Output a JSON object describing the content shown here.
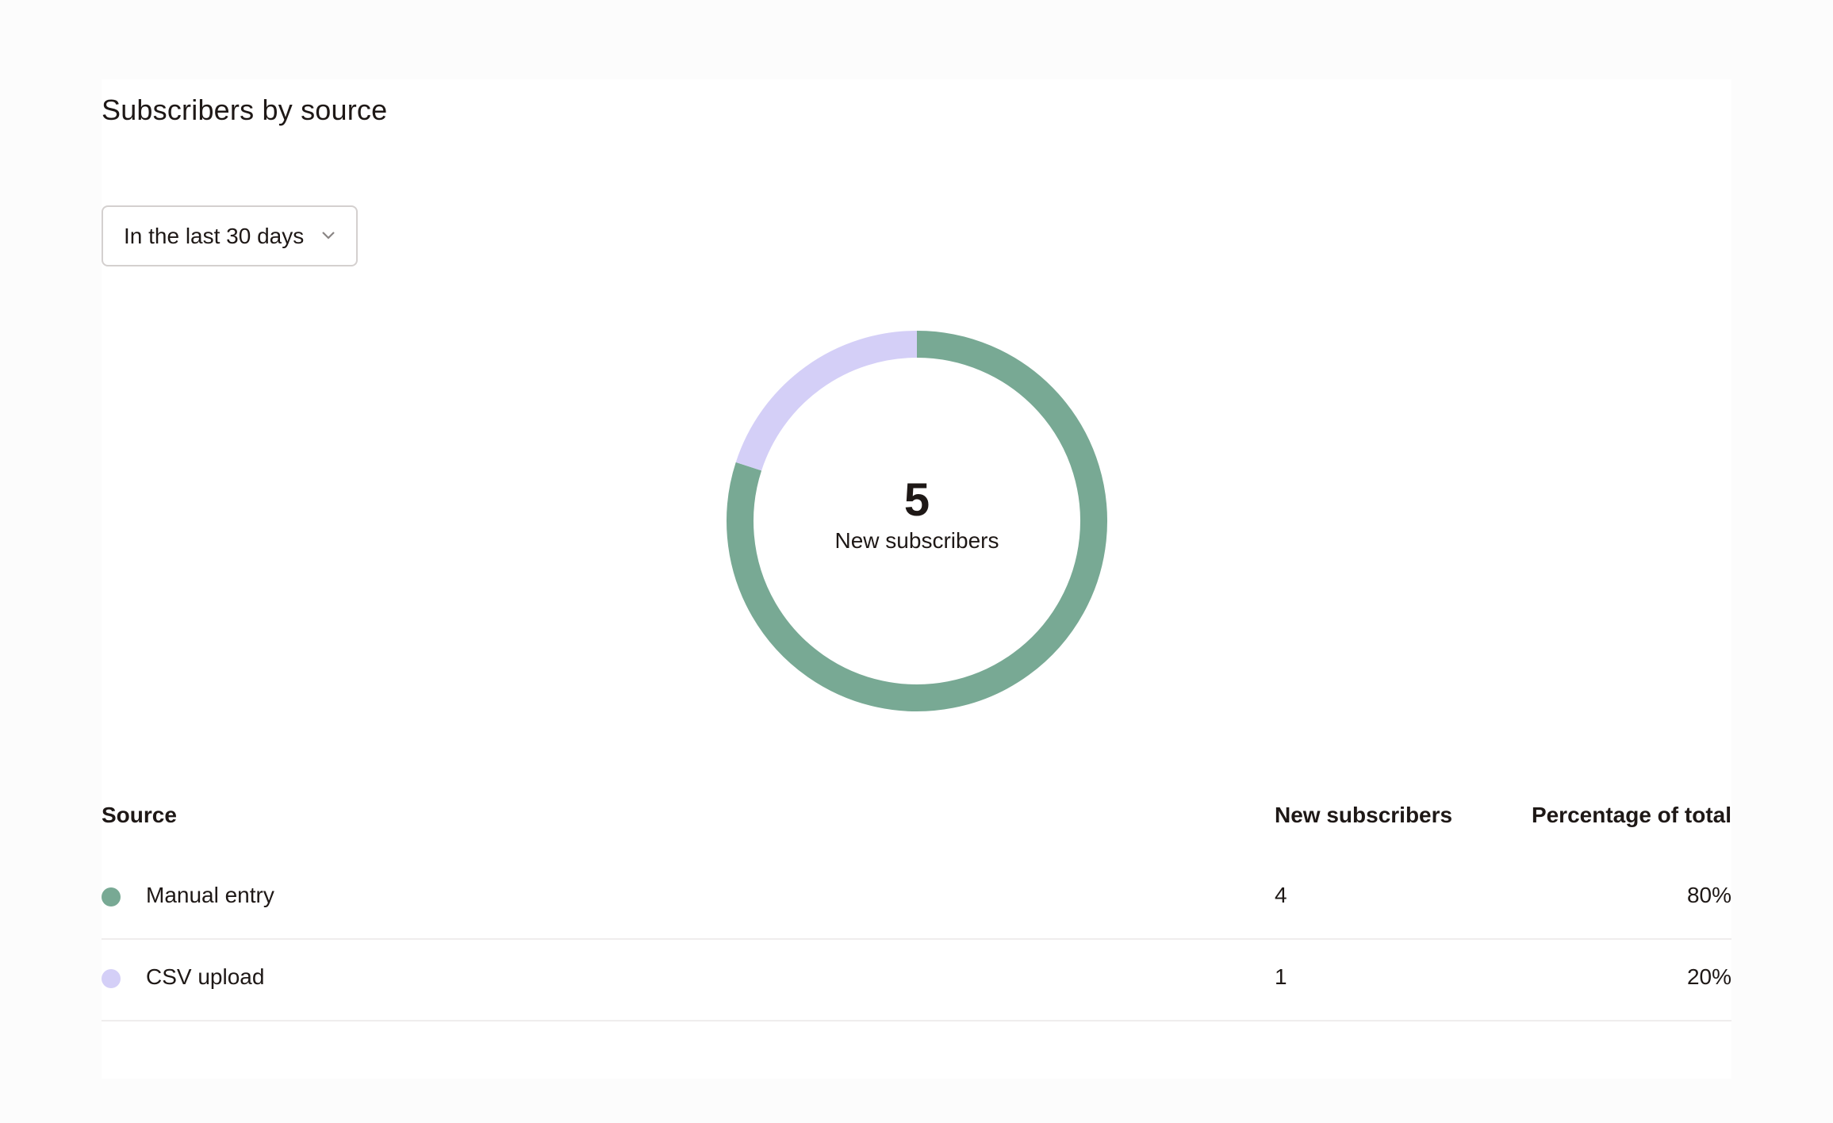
{
  "title": "Subscribers by source",
  "filter": {
    "selected": "In the last 30 days",
    "icon": "chevron-down-icon"
  },
  "summary": {
    "total": "5",
    "label": "New subscribers"
  },
  "table": {
    "headers": [
      "Source",
      "New subscribers",
      "Percentage of total"
    ],
    "rows": [
      {
        "source": "Manual entry",
        "count": "4",
        "percent": "80%",
        "color": "#78a994"
      },
      {
        "source": "CSV upload",
        "count": "1",
        "percent": "20%",
        "color": "#d4cff7"
      }
    ]
  },
  "chart_data": {
    "type": "pie",
    "variant": "donut",
    "categories": [
      "Manual entry",
      "CSV upload"
    ],
    "values": [
      4,
      1
    ],
    "colors": [
      "#78a994",
      "#d4cff7"
    ],
    "center_text": "5",
    "center_label": "New subscribers"
  }
}
